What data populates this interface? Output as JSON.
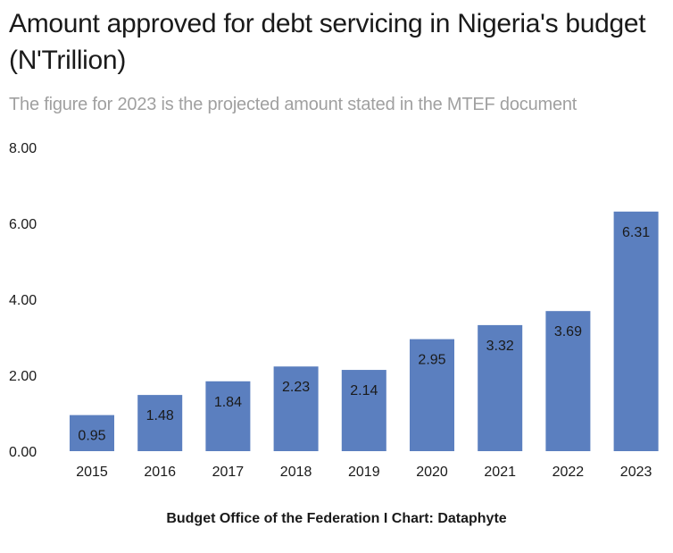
{
  "title": "Amount approved for debt servicing in Nigeria's budget (N'Trillion)",
  "subtitle": "The figure for 2023 is the projected amount stated in the MTEF document",
  "source": "Budget Office of the Federation I Chart: Dataphyte",
  "colors": {
    "bar": "#5b7fbf",
    "text": "#1a1a1a",
    "subtitle": "#a0a0a0"
  },
  "chart_data": {
    "type": "bar",
    "categories": [
      "2015",
      "2016",
      "2017",
      "2018",
      "2019",
      "2020",
      "2021",
      "2022",
      "2023"
    ],
    "values": [
      0.95,
      1.48,
      1.84,
      2.23,
      2.14,
      2.95,
      3.32,
      3.69,
      6.31
    ],
    "value_labels": [
      "0.95",
      "1.48",
      "1.84",
      "2.23",
      "2.14",
      "2.95",
      "3.32",
      "3.69",
      "6.31"
    ],
    "yticks": [
      0,
      2,
      4,
      6,
      8
    ],
    "ytick_labels": [
      "0.00",
      "2.00",
      "4.00",
      "6.00",
      "8.00"
    ],
    "ylim": [
      0,
      8
    ],
    "grid": false
  }
}
